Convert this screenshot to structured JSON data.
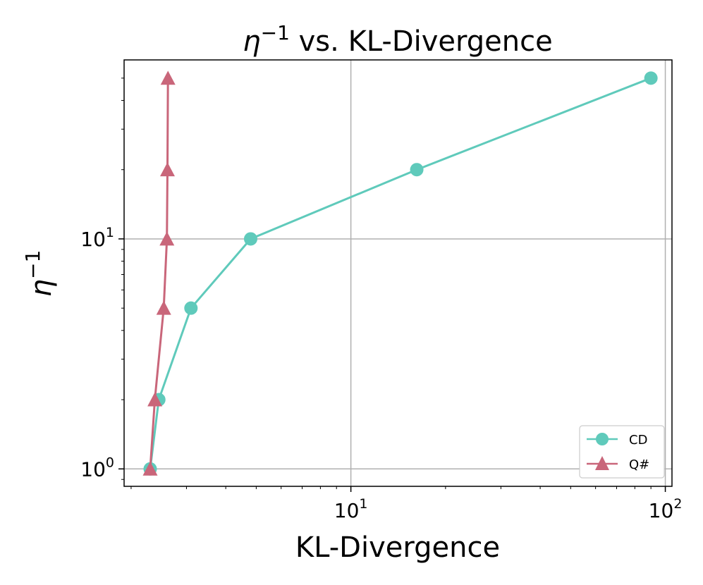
{
  "chart_data": {
    "type": "line",
    "title": "η⁻¹ vs. KL-Divergence",
    "title_parts": {
      "symbol": "η",
      "exponent": "−1",
      "rest": " vs. KL-Divergence"
    },
    "xlabel": "KL-Divergence",
    "ylabel": {
      "symbol": "η",
      "exponent": "−1"
    },
    "xscale": "log",
    "yscale": "log",
    "xlim": [
      1.9,
      105
    ],
    "ylim": [
      0.84,
      60
    ],
    "grid": true,
    "x_major_ticks": [
      {
        "value": 10,
        "base": "10",
        "exp": "1"
      },
      {
        "value": 100,
        "base": "10",
        "exp": "2"
      }
    ],
    "y_major_ticks": [
      {
        "value": 1,
        "base": "10",
        "exp": "0"
      },
      {
        "value": 10,
        "base": "10",
        "exp": "1"
      }
    ],
    "legend_position": "bottom-right",
    "series": [
      {
        "name": "CD",
        "color": "#5fcabb",
        "marker": "circle",
        "points": [
          {
            "x": 2.3,
            "y": 1
          },
          {
            "x": 2.45,
            "y": 2
          },
          {
            "x": 3.1,
            "y": 5
          },
          {
            "x": 4.8,
            "y": 10
          },
          {
            "x": 16.2,
            "y": 20
          },
          {
            "x": 90,
            "y": 50
          }
        ]
      },
      {
        "name": "Q#",
        "color": "#c9667a",
        "marker": "triangle",
        "points": [
          {
            "x": 2.3,
            "y": 1
          },
          {
            "x": 2.38,
            "y": 2
          },
          {
            "x": 2.54,
            "y": 5
          },
          {
            "x": 2.6,
            "y": 10
          },
          {
            "x": 2.61,
            "y": 20
          },
          {
            "x": 2.62,
            "y": 50
          }
        ]
      }
    ]
  }
}
